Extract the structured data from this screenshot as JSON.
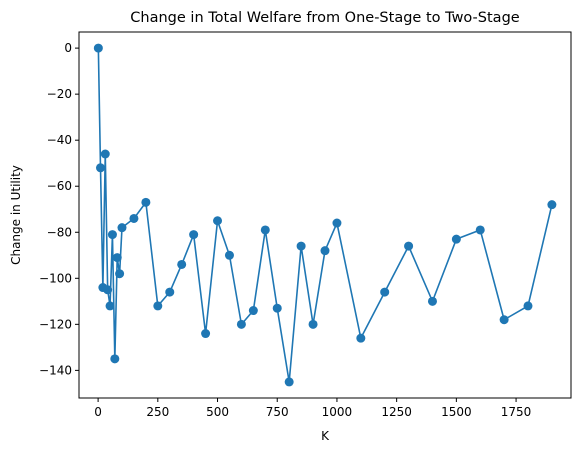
{
  "chart_data": {
    "type": "line",
    "title": "Change in Total Welfare from One-Stage to Two-Stage",
    "xlabel": "K",
    "ylabel": "Change in Utility",
    "xlim": [
      -80,
      1980
    ],
    "ylim": [
      -152,
      7
    ],
    "xticks": [
      0,
      250,
      500,
      750,
      1000,
      1250,
      1500,
      1750
    ],
    "yticks": [
      0,
      -20,
      -40,
      -60,
      -80,
      -100,
      -120,
      -140
    ],
    "grid": false,
    "color": "#1f77b4",
    "marker": "circle",
    "x": [
      1,
      10,
      20,
      30,
      40,
      50,
      60,
      70,
      80,
      90,
      100,
      150,
      200,
      250,
      300,
      350,
      400,
      450,
      500,
      550,
      600,
      650,
      700,
      750,
      800,
      850,
      900,
      950,
      1000,
      1100,
      1200,
      1300,
      1400,
      1500,
      1600,
      1700,
      1800,
      1900
    ],
    "y": [
      0,
      -52,
      -104,
      -46,
      -105,
      -112,
      -81,
      -135,
      -91,
      -98,
      -78,
      -74,
      -67,
      -112,
      -106,
      -94,
      -81,
      -124,
      -75,
      -90,
      -120,
      -114,
      -79,
      -113,
      -145,
      -86,
      -120,
      -88,
      -76,
      -126,
      -106,
      -86,
      -110,
      -83,
      -79,
      -118,
      -112,
      -68
    ]
  }
}
